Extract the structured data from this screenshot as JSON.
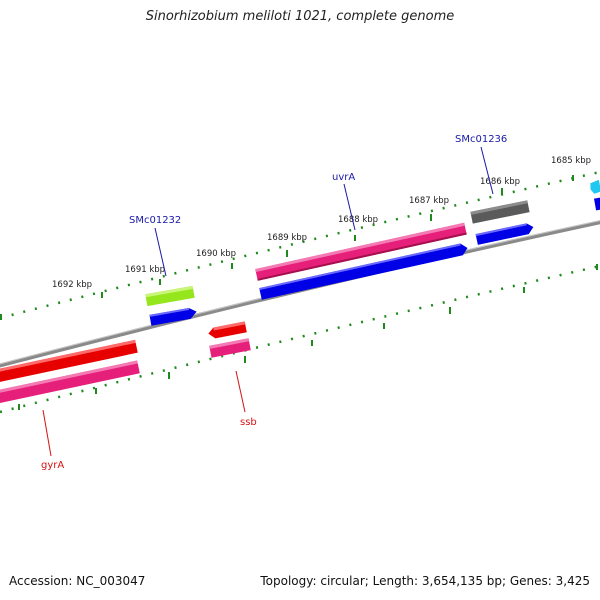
{
  "title": "Sinorhizobium meliloti 1021, complete genome",
  "ruler_ticks": [
    "1685 kbp",
    "1686 kbp",
    "1687 kbp",
    "1688 kbp",
    "1689 kbp",
    "1690 kbp",
    "1691 kbp",
    "1692 kbp"
  ],
  "gene_labels": [
    "SMc01236",
    "uvrA",
    "SMc01232",
    "ssb",
    "gyrA"
  ],
  "footer": {
    "accession": "Accession: NC_003047",
    "summary": "Topology: circular; Length: 3,654,135 bp; Genes: 3,425"
  },
  "colors": {
    "backbone": "#8a8a8a",
    "tick": "#1e8a1e",
    "label_blue": "#1a1aa8",
    "label_red": "#d21414",
    "cds_blue": "#0000e6",
    "gene_pink": "#e6207a",
    "gene_red": "#e60000",
    "gene_gray": "#5a5a5a",
    "gene_green": "#96e61e",
    "gene_cyan": "#1ec8f0"
  }
}
